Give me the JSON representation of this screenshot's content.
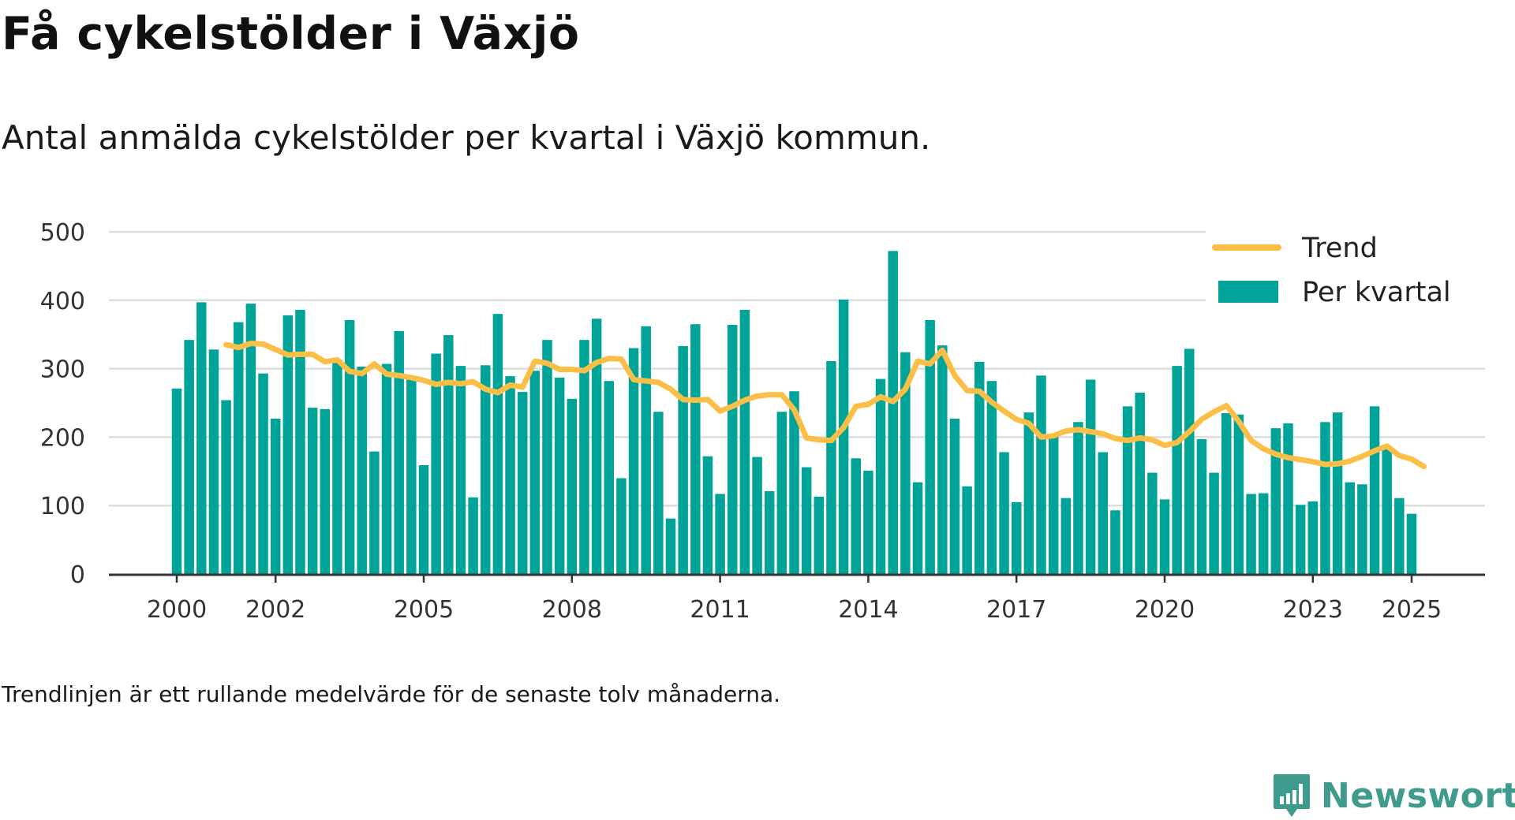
{
  "title": "Få cykelstölder i Växjö",
  "subtitle": "Antal anmälda cykelstölder per kvartal i Växjö kommun.",
  "footnote": "Trendlinjen är ett rullande medelvärde för de senaste tolv månaderna.",
  "brand": {
    "name": "Newsworthy",
    "icon": "newsworthy-logo-icon"
  },
  "chart_data": {
    "type": "bar",
    "x_unit": "quarter",
    "start_year": 2000,
    "ylim": [
      0,
      500
    ],
    "yticks": [
      0,
      100,
      200,
      300,
      400,
      500
    ],
    "xticks": [
      2000,
      2002,
      2005,
      2008,
      2011,
      2014,
      2017,
      2020,
      2023,
      2025
    ],
    "grid": true,
    "legend_position": "top-right",
    "colors": {
      "bars": "#00a398",
      "trend": "#fbbf47",
      "grid": "#dddddd",
      "axis": "#333333"
    },
    "series": [
      {
        "name": "Per kvartal",
        "type": "bar",
        "values": [
          271,
          342,
          397,
          328,
          254,
          368,
          395,
          293,
          227,
          378,
          386,
          243,
          241,
          313,
          371,
          303,
          179,
          307,
          355,
          286,
          159,
          322,
          349,
          304,
          112,
          305,
          380,
          289,
          266,
          297,
          342,
          287,
          256,
          342,
          373,
          282,
          140,
          330,
          362,
          237,
          81,
          333,
          365,
          172,
          117,
          364,
          386,
          171,
          121,
          237,
          267,
          156,
          113,
          311,
          401,
          169,
          151,
          285,
          472,
          324,
          134,
          371,
          334,
          227,
          128,
          310,
          282,
          178,
          105,
          236,
          290,
          204,
          111,
          222,
          284,
          178,
          93,
          245,
          265,
          148,
          109,
          304,
          329,
          197,
          148,
          235,
          233,
          117,
          118,
          213,
          220,
          101,
          106,
          222,
          236,
          134,
          131,
          245,
          185,
          111,
          88
        ]
      },
      {
        "name": "Trend",
        "type": "line",
        "start_index": 4,
        "values": [
          335,
          331,
          337,
          336,
          328,
          320,
          321,
          321,
          310,
          313,
          296,
          293,
          307,
          292,
          290,
          287,
          283,
          277,
          280,
          278,
          281,
          270,
          265,
          276,
          273,
          311,
          308,
          299,
          299,
          297,
          309,
          315,
          314,
          284,
          282,
          280,
          270,
          255,
          254,
          255,
          238,
          245,
          254,
          260,
          262,
          262,
          240,
          199,
          196,
          195,
          214,
          245,
          248,
          259,
          252,
          270,
          311,
          307,
          327,
          290,
          268,
          267,
          251,
          238,
          226,
          220,
          200,
          202,
          209,
          211,
          208,
          205,
          198,
          195,
          199,
          196,
          188,
          192,
          208,
          226,
          237,
          246,
          223,
          195,
          183,
          175,
          170,
          167,
          164,
          160,
          161,
          165,
          172,
          180,
          187,
          173,
          168,
          157
        ]
      }
    ]
  }
}
